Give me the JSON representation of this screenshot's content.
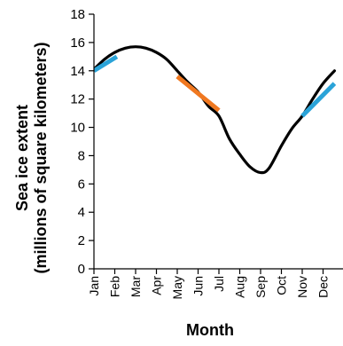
{
  "chart_data": {
    "type": "line",
    "title": "",
    "xlabel": "Month",
    "ylabel_line1": "Sea ice extent",
    "ylabel_line2": "(millions of square kilometers)",
    "categories": [
      "Jan",
      "Feb",
      "Mar",
      "Apr",
      "May",
      "Jun",
      "Jul",
      "Aug",
      "Sep",
      "Oct",
      "Nov",
      "Dec"
    ],
    "ylim": [
      0,
      18
    ],
    "yticks": [
      0,
      2,
      4,
      6,
      8,
      10,
      12,
      14,
      16,
      18
    ],
    "grid": false,
    "legend": "none",
    "series": [
      {
        "color": "#000000",
        "points": [
          {
            "x": 1.0,
            "y": 14.1
          },
          {
            "x": 1.5,
            "y": 14.8
          },
          {
            "x": 2.0,
            "y": 15.3
          },
          {
            "x": 2.5,
            "y": 15.6
          },
          {
            "x": 3.0,
            "y": 15.7
          },
          {
            "x": 3.5,
            "y": 15.6
          },
          {
            "x": 4.0,
            "y": 15.3
          },
          {
            "x": 4.5,
            "y": 14.8
          },
          {
            "x": 5.0,
            "y": 14.0
          },
          {
            "x": 5.5,
            "y": 13.2
          },
          {
            "x": 6.0,
            "y": 12.5
          },
          {
            "x": 6.5,
            "y": 11.5
          },
          {
            "x": 7.0,
            "y": 10.8
          },
          {
            "x": 7.5,
            "y": 9.2
          },
          {
            "x": 8.0,
            "y": 8.1
          },
          {
            "x": 8.5,
            "y": 7.2
          },
          {
            "x": 9.0,
            "y": 6.8
          },
          {
            "x": 9.4,
            "y": 7.1
          },
          {
            "x": 10.0,
            "y": 8.7
          },
          {
            "x": 10.5,
            "y": 9.9
          },
          {
            "x": 11.0,
            "y": 10.8
          },
          {
            "x": 11.5,
            "y": 12.0
          },
          {
            "x": 12.0,
            "y": 13.1
          },
          {
            "x": 12.55,
            "y": 14.0
          }
        ]
      },
      {
        "color": "#2aa3d8",
        "points": [
          {
            "x": 1.0,
            "y": 14.0
          },
          {
            "x": 2.1,
            "y": 15.0
          }
        ]
      },
      {
        "color": "#f07820",
        "points": [
          {
            "x": 5.0,
            "y": 13.6
          },
          {
            "x": 7.0,
            "y": 11.2
          }
        ]
      },
      {
        "color": "#2aa3d8",
        "points": [
          {
            "x": 11.0,
            "y": 10.8
          },
          {
            "x": 12.55,
            "y": 13.1
          }
        ]
      }
    ]
  }
}
